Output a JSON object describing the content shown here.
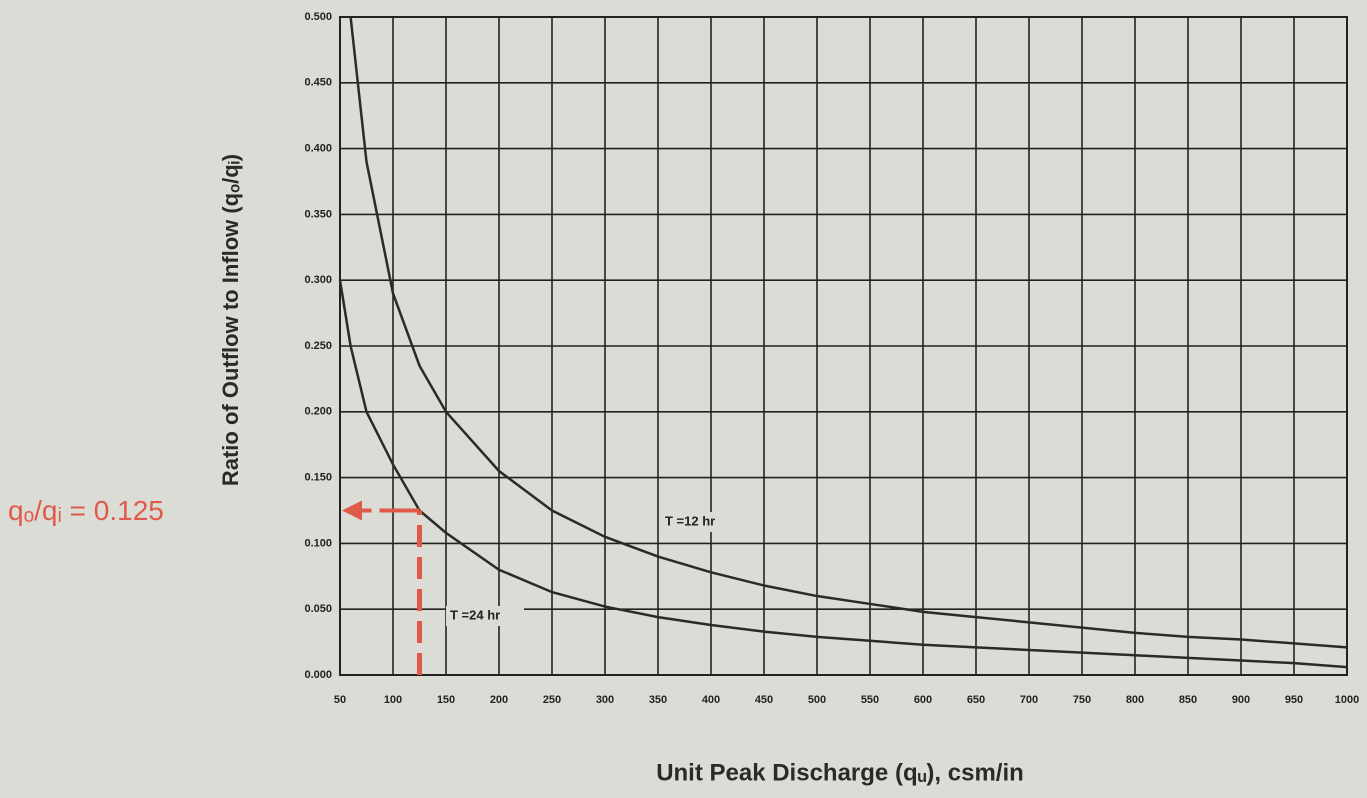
{
  "chart_data": {
    "type": "line",
    "xlabel": "Unit Peak Discharge (qᵤ), csm/in",
    "ylabel": "Ratio of Outflow to Inflow (qₒ/qᵢ)",
    "x": [
      50,
      60,
      75,
      100,
      125,
      150,
      200,
      250,
      300,
      350,
      400,
      450,
      500,
      550,
      600,
      650,
      700,
      750,
      800,
      850,
      900,
      950,
      1000
    ],
    "series": [
      {
        "name": "T =12 hr",
        "color": "#2a2a2a",
        "values": [
          null,
          0.5,
          0.39,
          0.29,
          0.235,
          0.2,
          0.155,
          0.125,
          0.105,
          0.09,
          0.078,
          0.068,
          0.06,
          0.054,
          0.048,
          0.044,
          0.04,
          0.036,
          0.032,
          0.029,
          0.027,
          0.024,
          0.021
        ]
      },
      {
        "name": "T =24 hr",
        "color": "#2a2a2a",
        "values": [
          0.3,
          0.25,
          0.2,
          0.16,
          0.125,
          0.108,
          0.08,
          0.063,
          0.052,
          0.044,
          0.038,
          0.033,
          0.029,
          0.026,
          0.023,
          0.021,
          0.019,
          0.017,
          0.015,
          0.013,
          0.011,
          0.009,
          0.006
        ]
      }
    ],
    "xlim": [
      50,
      1000
    ],
    "xticks": [
      50,
      100,
      150,
      200,
      250,
      300,
      350,
      400,
      450,
      500,
      550,
      600,
      650,
      700,
      750,
      800,
      850,
      900,
      950,
      1000
    ],
    "ylim": [
      0,
      0.5
    ],
    "yticks": [
      {
        "value": 0,
        "label": "0.000"
      },
      {
        "value": 0.05,
        "label": "0.050"
      },
      {
        "value": 0.1,
        "label": "0.100"
      },
      {
        "value": 0.15,
        "label": "0.150"
      },
      {
        "value": 0.2,
        "label": "0.200"
      },
      {
        "value": 0.25,
        "label": "0.250"
      },
      {
        "value": 0.3,
        "label": "0.300"
      },
      {
        "value": 0.35,
        "label": "0.350"
      },
      {
        "value": 0.4,
        "label": "0.400"
      },
      {
        "value": 0.45,
        "label": "0.450"
      },
      {
        "value": 0.5,
        "label": "0.500"
      }
    ],
    "grid": true,
    "reference": {
      "x": 125,
      "y": 0.125,
      "label": "qₒ/qᵢ = 0.125",
      "color": "#e05a4a"
    }
  }
}
